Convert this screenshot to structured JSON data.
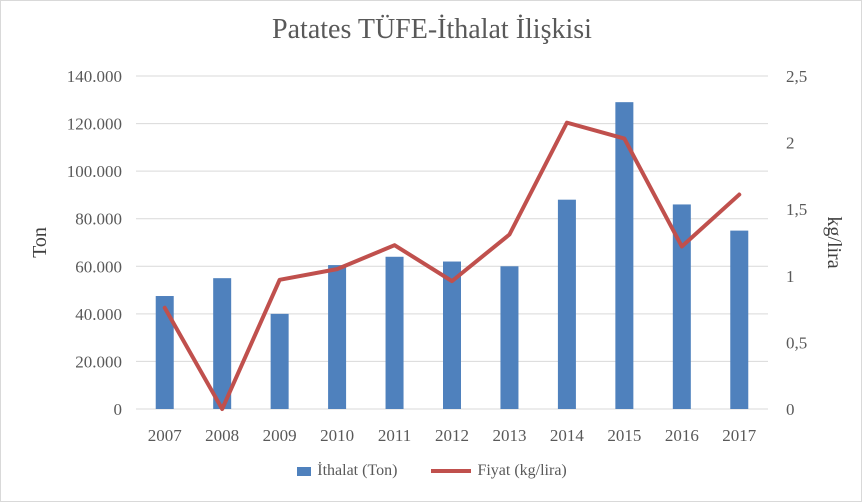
{
  "chart_data": {
    "type": "bar+line",
    "title": "Patates TÜFE-İthalat İlişkisi",
    "categories": [
      "2007",
      "2008",
      "2009",
      "2010",
      "2011",
      "2012",
      "2013",
      "2014",
      "2015",
      "2016",
      "2017"
    ],
    "series": [
      {
        "name": "İthalat (Ton)",
        "type": "bar",
        "axis": "left",
        "color": "#4f81bd",
        "values": [
          47500,
          55000,
          40000,
          60500,
          64000,
          62000,
          60000,
          88000,
          129000,
          86000,
          75000
        ]
      },
      {
        "name": "Fiyat (kg/lira)",
        "type": "line",
        "axis": "right",
        "color": "#c0504d",
        "values": [
          0.76,
          0.0,
          0.97,
          1.05,
          1.23,
          0.96,
          1.31,
          2.15,
          2.03,
          1.22,
          1.61
        ]
      }
    ],
    "ylabel": "Ton",
    "y2label": "kg/lira",
    "ylim": [
      0,
      140000
    ],
    "y2lim": [
      0,
      2.5
    ],
    "yticks": [
      "0",
      "20.000",
      "40.000",
      "60.000",
      "80.000",
      "100.000",
      "120.000",
      "140.000"
    ],
    "y2ticks": [
      "0",
      "0,5",
      "1",
      "1,5",
      "2",
      "2,5"
    ],
    "grid": true,
    "legend_position": "bottom"
  }
}
